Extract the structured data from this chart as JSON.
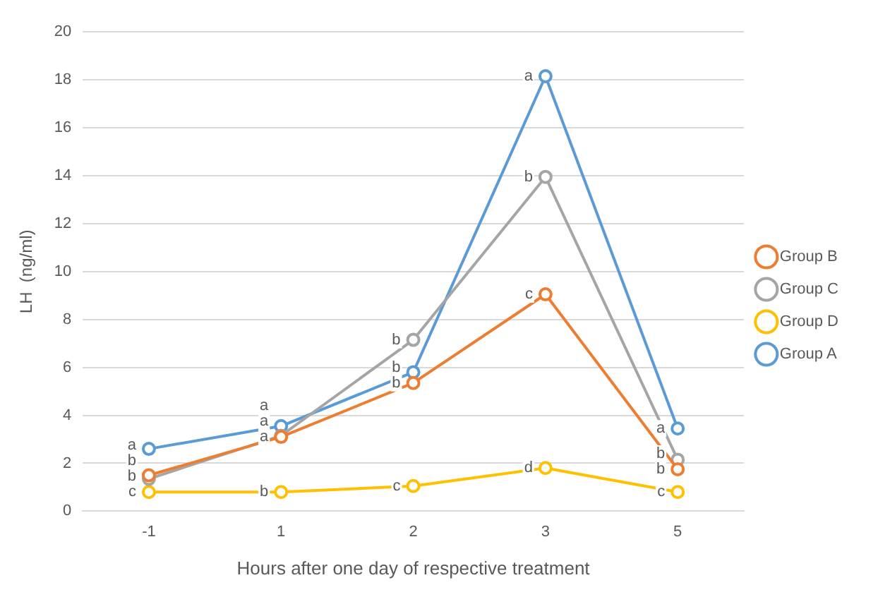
{
  "chart_data": {
    "type": "line",
    "xlabel": "Hours after one day of respective treatment",
    "ylabel": "LH  (ng/ml)",
    "categories": [
      "-1",
      "1",
      "2",
      "3",
      "5"
    ],
    "series": [
      {
        "name": "Group B",
        "color": "#ed7d31",
        "values": [
          1.5,
          3.1,
          5.35,
          9.05,
          1.75
        ],
        "value_labels": [
          "b",
          "a",
          "b",
          "c",
          "b"
        ]
      },
      {
        "name": "Group C",
        "color": "#a5a5a5",
        "values": [
          1.35,
          3.15,
          7.15,
          13.95,
          2.15
        ],
        "value_labels": [
          "b",
          "a",
          "b",
          "b",
          "b"
        ]
      },
      {
        "name": "Group D",
        "color": "#ffc000",
        "values": [
          0.8,
          0.8,
          1.05,
          1.8,
          0.8
        ],
        "value_labels": [
          "c",
          "b",
          "c",
          "d",
          "c"
        ]
      },
      {
        "name": "Group A",
        "color": "#5b9bd5",
        "values": [
          2.6,
          3.55,
          5.8,
          18.15,
          3.45
        ],
        "value_labels": [
          "a",
          "a",
          "b",
          "a",
          "a"
        ]
      }
    ],
    "ylim": [
      0,
      20
    ],
    "yticks": [
      0,
      2,
      4,
      6,
      8,
      10,
      12,
      14,
      16,
      18,
      20
    ],
    "grid": "y",
    "legend": "right",
    "marker": "circle",
    "line_style": "solid"
  }
}
